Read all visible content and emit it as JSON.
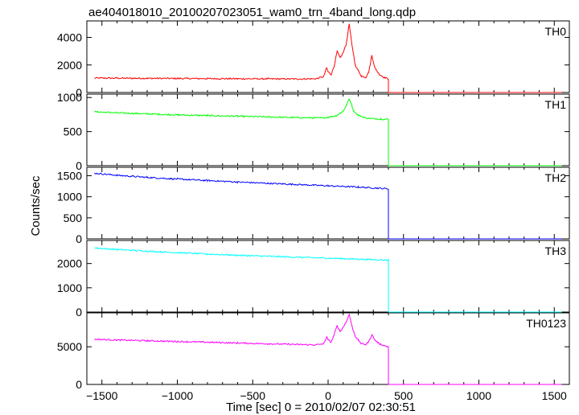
{
  "chart_data": {
    "type": "line",
    "title": "ae404018010_20100207023051_wam0_trn_4band_long.qdp",
    "xlabel": "Time [sec] 0 = 2010/02/07 02:30:51",
    "ylabel": "Counts/sec",
    "xlim": [
      -1600,
      1600
    ],
    "x_ticks": [
      -1500,
      -1000,
      -500,
      0,
      500,
      1000,
      1500
    ],
    "x_tick_labels": [
      "−1500",
      "−1000",
      "−500",
      "0",
      "500",
      "1000",
      "1500"
    ],
    "grid": false,
    "panels": [
      {
        "name": "TH0",
        "color": "#ff0000",
        "ylim": [
          0,
          5200
        ],
        "y_ticks": [
          0,
          2000,
          4000
        ],
        "y_tick_labels": [
          "0",
          "2000",
          "4000"
        ],
        "x": [
          -1550,
          -1400,
          -1200,
          -1000,
          -800,
          -600,
          -400,
          -200,
          -80,
          -30,
          -10,
          0,
          20,
          40,
          60,
          80,
          100,
          120,
          140,
          160,
          180,
          200,
          220,
          250,
          270,
          290,
          310,
          340,
          380,
          400,
          400,
          1550
        ],
        "y": [
          1050,
          1040,
          1030,
          1020,
          1010,
          1000,
          990,
          980,
          1000,
          1150,
          1800,
          1500,
          1300,
          1900,
          3000,
          2500,
          2900,
          3500,
          5000,
          3300,
          2000,
          1600,
          1200,
          1100,
          1500,
          2700,
          1800,
          1300,
          1050,
          1000,
          0,
          0
        ]
      },
      {
        "name": "TH1",
        "color": "#00ff00",
        "ylim": [
          0,
          1050
        ],
        "y_ticks": [
          0,
          500,
          1000
        ],
        "y_tick_labels": [
          "0",
          "500",
          "1000"
        ],
        "x": [
          -1550,
          -1400,
          -1200,
          -1000,
          -800,
          -600,
          -400,
          -200,
          -50,
          0,
          50,
          80,
          100,
          120,
          140,
          150,
          170,
          200,
          250,
          300,
          350,
          400,
          400,
          1550
        ],
        "y": [
          790,
          775,
          760,
          745,
          735,
          725,
          715,
          705,
          700,
          710,
          730,
          770,
          800,
          880,
          980,
          930,
          800,
          740,
          700,
          690,
          685,
          680,
          0,
          0
        ]
      },
      {
        "name": "TH2",
        "color": "#0000ff",
        "ylim": [
          0,
          1700
        ],
        "y_ticks": [
          0,
          500,
          1000,
          1500
        ],
        "y_tick_labels": [
          "0",
          "500",
          "1000",
          "1500"
        ],
        "x": [
          -1550,
          -1400,
          -1200,
          -1000,
          -800,
          -600,
          -400,
          -200,
          0,
          200,
          400,
          400,
          1550
        ],
        "y": [
          1560,
          1510,
          1460,
          1420,
          1385,
          1350,
          1320,
          1290,
          1260,
          1230,
          1190,
          0,
          0
        ]
      },
      {
        "name": "TH3",
        "color": "#00ffff",
        "ylim": [
          0,
          2950
        ],
        "y_ticks": [
          0,
          1000,
          2000
        ],
        "y_tick_labels": [
          "0",
          "1000",
          "2000"
        ],
        "x": [
          -1550,
          -1400,
          -1200,
          -1000,
          -800,
          -600,
          -400,
          -200,
          0,
          200,
          400,
          400,
          1550
        ],
        "y": [
          2640,
          2580,
          2510,
          2450,
          2390,
          2340,
          2300,
          2260,
          2220,
          2180,
          2140,
          0,
          0
        ]
      },
      {
        "name": "TH0123",
        "color": "#ff00ff",
        "ylim": [
          0,
          9500
        ],
        "y_ticks": [
          0,
          5000
        ],
        "y_tick_labels": [
          "0",
          "5000"
        ],
        "x": [
          -1550,
          -1400,
          -1200,
          -1000,
          -800,
          -600,
          -400,
          -200,
          -80,
          -30,
          -10,
          0,
          20,
          40,
          60,
          80,
          100,
          120,
          140,
          160,
          180,
          200,
          220,
          250,
          270,
          290,
          310,
          340,
          380,
          400,
          400,
          1550
        ],
        "y": [
          6000,
          5900,
          5800,
          5700,
          5600,
          5500,
          5400,
          5300,
          5250,
          5400,
          6300,
          5900,
          5600,
          6600,
          7800,
          7000,
          7600,
          8300,
          9300,
          7600,
          6400,
          5900,
          5400,
          5300,
          5700,
          6600,
          5900,
          5400,
          5100,
          5000,
          0,
          0
        ]
      }
    ]
  }
}
